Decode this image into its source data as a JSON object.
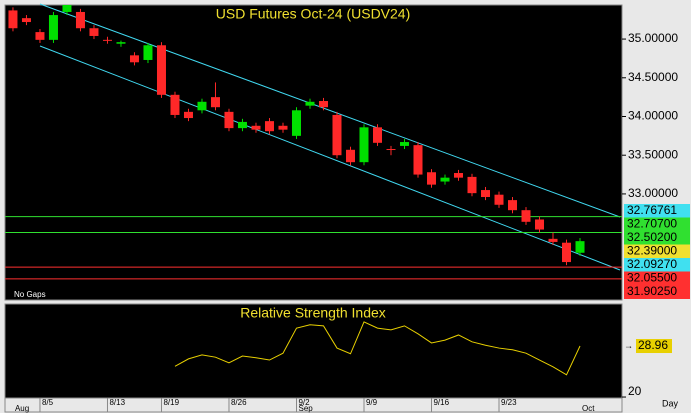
{
  "chart_data": [
    {
      "type": "candlestick",
      "title": "USD Futures Oct-24 (USDV24)",
      "note": "No Gaps",
      "x_unit": "Day",
      "up_color": "#00e000",
      "down_color": "#ff2828",
      "open": [
        35.37,
        35.27,
        35.09,
        34.99,
        35.35,
        35.35,
        35.14,
        34.99,
        34.94,
        34.79,
        34.73,
        34.92,
        34.28,
        34.06,
        34.08,
        34.25,
        34.06,
        33.85,
        33.88,
        33.94,
        33.88,
        33.75,
        34.14,
        34.2,
        34.02,
        33.57,
        33.41,
        33.86,
        33.58,
        33.62,
        33.63,
        33.28,
        33.16,
        33.27,
        33.22,
        33.05,
        32.99,
        32.92,
        32.79,
        32.67,
        32.42,
        32.37,
        32.24
      ],
      "high": [
        35.41,
        35.31,
        35.13,
        35.35,
        35.44,
        35.39,
        35.18,
        35.03,
        34.98,
        34.83,
        34.95,
        34.96,
        34.32,
        34.1,
        34.23,
        34.44,
        34.1,
        33.97,
        33.92,
        33.98,
        33.92,
        34.12,
        34.23,
        34.24,
        34.06,
        33.61,
        33.9,
        33.9,
        33.62,
        33.71,
        33.67,
        33.32,
        33.25,
        33.31,
        33.26,
        33.09,
        33.03,
        32.96,
        32.83,
        32.71,
        32.5,
        32.41,
        32.43
      ],
      "low": [
        35.1,
        35.18,
        34.95,
        34.95,
        35.31,
        35.1,
        35.0,
        34.94,
        34.9,
        34.66,
        34.69,
        34.24,
        33.98,
        33.94,
        34.04,
        34.08,
        33.81,
        33.81,
        33.79,
        33.77,
        33.79,
        33.71,
        34.1,
        34.08,
        33.46,
        33.37,
        33.37,
        33.62,
        33.5,
        33.58,
        33.21,
        33.08,
        33.12,
        33.17,
        32.97,
        32.92,
        32.82,
        32.75,
        32.6,
        32.5,
        32.34,
        32.08,
        32.2
      ],
      "close": [
        35.14,
        35.22,
        34.99,
        35.31,
        35.44,
        35.14,
        35.04,
        34.98,
        34.96,
        34.7,
        34.92,
        34.28,
        34.02,
        33.98,
        34.19,
        34.12,
        33.85,
        33.93,
        33.83,
        33.81,
        33.83,
        34.08,
        34.19,
        34.12,
        33.5,
        33.41,
        33.86,
        33.66,
        33.57,
        33.67,
        33.25,
        33.12,
        33.21,
        33.21,
        33.01,
        32.96,
        32.86,
        32.79,
        32.64,
        32.54,
        32.38,
        32.12,
        32.39
      ],
      "xlim": [
        -0.59,
        45.11
      ],
      "ylim": [
        31.63,
        35.44
      ],
      "yticks": [
        {
          "value": 35,
          "label": "35.00000"
        },
        {
          "value": 34.5,
          "label": "34.50000"
        },
        {
          "value": 34,
          "label": "34.00000"
        },
        {
          "value": 33.5,
          "label": "33.50000"
        },
        {
          "value": 33,
          "label": "33.00000"
        }
      ],
      "xticks": [
        {
          "value": 2,
          "label": "8/5"
        },
        {
          "value": 7,
          "label": "8/13"
        },
        {
          "value": 11,
          "label": "8/19"
        },
        {
          "value": 16,
          "label": "8/26"
        },
        {
          "value": 21,
          "label": "9/2"
        },
        {
          "value": 26,
          "label": "9/9"
        },
        {
          "value": 31,
          "label": "9/16"
        },
        {
          "value": 36,
          "label": "9/23"
        }
      ],
      "month_ticks": [
        {
          "value": 0,
          "label": "Aug"
        },
        {
          "value": 21,
          "label": "Sep"
        },
        {
          "value": 42,
          "label": "Oct"
        }
      ],
      "levels": [
        {
          "value": 32.76761,
          "label": "32.76761",
          "color": "#40e0f0",
          "line": false
        },
        {
          "value": 32.707,
          "label": "32.70700",
          "color": "#30e030",
          "line": true
        },
        {
          "value": 32.502,
          "label": "32.50200",
          "color": "#30e030",
          "line": true
        },
        {
          "value": 32.39,
          "label": "32.39000",
          "color": "#f0e030",
          "line": false
        },
        {
          "value": 32.0927,
          "label": "32.09270",
          "color": "#40e0f0",
          "line": false
        },
        {
          "value": 32.055,
          "label": "32.05500",
          "color": "#ff3030",
          "line": true
        },
        {
          "value": 31.9025,
          "label": "31.90250",
          "color": "#ff3030",
          "line": true
        }
      ]
    },
    {
      "type": "line",
      "title": "Relative Strength Index",
      "color": "#e8d000",
      "values": [
        null,
        null,
        null,
        null,
        null,
        null,
        null,
        null,
        null,
        null,
        null,
        null,
        25.4,
        26.7,
        27.4,
        27.0,
        26.0,
        27.2,
        26.9,
        26.5,
        27.7,
        32.1,
        32.7,
        32.5,
        28.6,
        27.6,
        33.2,
        32.1,
        31.8,
        32.5,
        31.1,
        29.5,
        30.0,
        30.9,
        29.7,
        29.1,
        28.6,
        28.3,
        27.7,
        26.5,
        25.3,
        23.9,
        28.96
      ],
      "xlim": [
        -0.59,
        45.11
      ],
      "ylim": [
        19.83,
        36.34
      ],
      "yticks": [
        20
      ]
    }
  ]
}
